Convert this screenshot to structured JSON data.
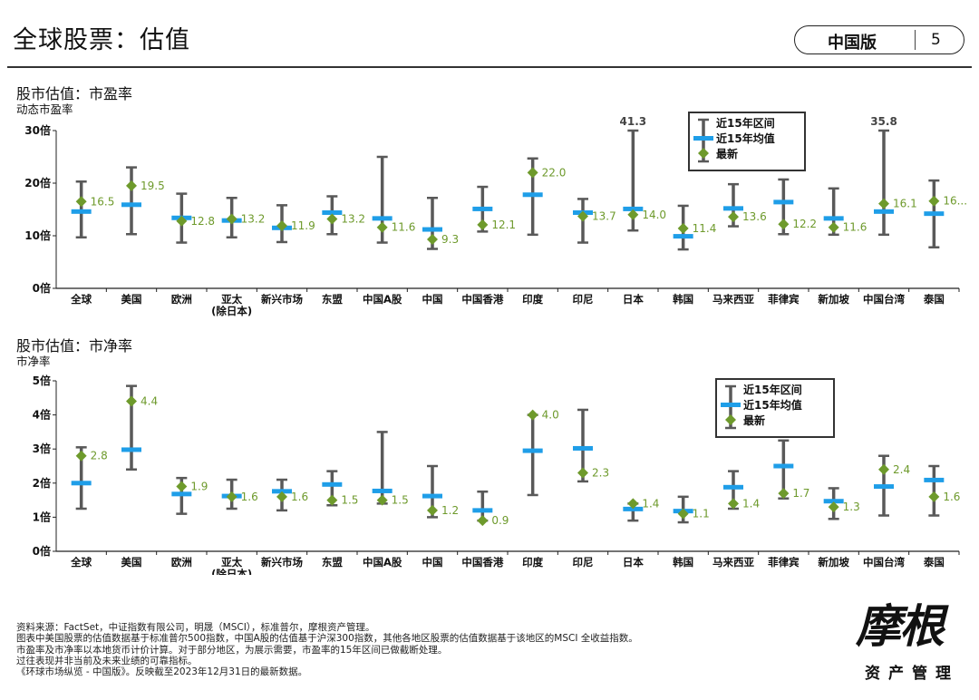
{
  "header": {
    "title": "全球股票：估值",
    "badge": "中国版",
    "page_number": "5"
  },
  "colors": {
    "range": "#595959",
    "average": "#1f9ee8",
    "latest": "#6e9a2c",
    "label": "#6e9a2c"
  },
  "chart_data": [
    {
      "type": "range-dot",
      "title": "股市估值：市盈率",
      "subtitle": "动态市盈率",
      "ylim": [
        0,
        30
      ],
      "yticks": [
        0,
        10,
        20,
        30
      ],
      "ytick_labels": [
        "0倍",
        "10倍",
        "20倍",
        "30倍"
      ],
      "categories": [
        "全球",
        "美国",
        "欧洲",
        "亚太\n(除日本)",
        "新兴市场",
        "东盟",
        "中国A股",
        "中国",
        "中国香港",
        "印度",
        "印尼",
        "日本",
        "韩国",
        "马来西亚",
        "菲律宾",
        "新加坡",
        "中国台湾",
        "泰国"
      ],
      "series": [
        {
          "name": "近15年区间",
          "low": [
            9.7,
            10.3,
            8.7,
            9.7,
            8.8,
            10.3,
            8.7,
            7.5,
            10.8,
            10.2,
            8.7,
            11.0,
            7.4,
            11.8,
            10.3,
            10.2,
            10.2,
            7.8
          ],
          "high": [
            20.3,
            23.0,
            18.0,
            17.2,
            15.8,
            17.5,
            25.0,
            17.2,
            19.3,
            24.7,
            17.0,
            30.0,
            15.7,
            19.8,
            20.7,
            19.0,
            30.0,
            20.5
          ]
        },
        {
          "name": "近15年均值",
          "values": [
            14.6,
            15.9,
            13.4,
            12.9,
            11.5,
            14.4,
            13.3,
            11.2,
            15.1,
            17.8,
            14.4,
            15.1,
            9.9,
            15.2,
            16.4,
            13.3,
            14.6,
            14.2
          ]
        },
        {
          "name": "最新",
          "values": [
            16.5,
            19.5,
            12.8,
            13.2,
            11.9,
            13.2,
            11.6,
            9.3,
            12.1,
            22.0,
            13.7,
            14.0,
            11.4,
            13.6,
            12.2,
            11.6,
            16.1,
            16.6
          ]
        }
      ],
      "value_labels": [
        "16.5",
        "19.5",
        "12.8",
        "13.2",
        "11.9",
        "13.2",
        "11.6",
        "9.3",
        "12.1",
        "22.0",
        "13.7",
        "14.0",
        "11.4",
        "13.6",
        "12.2",
        "11.6",
        "16.1",
        "16..."
      ],
      "cap_labels": [
        {
          "category": "日本",
          "text": "41.3"
        },
        {
          "category": "中国台湾",
          "text": "35.8"
        }
      ],
      "legend": {
        "position": "top-right",
        "entries": [
          "近15年区间",
          "近15年均值",
          "最新"
        ]
      }
    },
    {
      "type": "range-dot",
      "title": "股市估值：市净率",
      "subtitle": "市净率",
      "ylim": [
        0,
        5
      ],
      "yticks": [
        0,
        1,
        2,
        3,
        4,
        5
      ],
      "ytick_labels": [
        "0倍",
        "1倍",
        "2倍",
        "3倍",
        "4倍",
        "5倍"
      ],
      "categories": [
        "全球",
        "美国",
        "欧洲",
        "亚太\n(除日本)",
        "新兴市场",
        "东盟",
        "中国A股",
        "中国",
        "中国香港",
        "印度",
        "印尼",
        "日本",
        "韩国",
        "马来西亚",
        "菲律宾",
        "新加坡",
        "中国台湾",
        "泰国"
      ],
      "series": [
        {
          "name": "近15年区间",
          "low": [
            1.25,
            2.4,
            1.1,
            1.25,
            1.2,
            1.35,
            1.4,
            1.0,
            0.9,
            1.65,
            2.05,
            0.9,
            0.85,
            1.25,
            1.55,
            0.95,
            1.05,
            1.05
          ],
          "high": [
            3.05,
            4.85,
            2.15,
            2.1,
            2.1,
            2.35,
            3.5,
            2.5,
            1.75,
            4.0,
            4.15,
            1.4,
            1.6,
            2.35,
            3.25,
            1.85,
            2.8,
            2.5
          ]
        },
        {
          "name": "近15年均值",
          "values": [
            2.0,
            2.98,
            1.68,
            1.62,
            1.76,
            1.96,
            1.77,
            1.62,
            1.2,
            2.95,
            3.02,
            1.24,
            1.18,
            1.88,
            2.5,
            1.47,
            1.9,
            2.09
          ]
        },
        {
          "name": "最新",
          "values": [
            2.8,
            4.4,
            1.9,
            1.6,
            1.6,
            1.5,
            1.5,
            1.2,
            0.9,
            4.0,
            2.3,
            1.4,
            1.1,
            1.4,
            1.7,
            1.3,
            2.4,
            1.6
          ]
        }
      ],
      "value_labels": [
        "2.8",
        "4.4",
        "1.9",
        "1.6",
        "1.6",
        "1.5",
        "1.5",
        "1.2",
        "0.9",
        "4.0",
        "2.3",
        "1.4",
        "1.1",
        "1.4",
        "1.7",
        "1.3",
        "2.4",
        "1.6"
      ],
      "cap_labels": [],
      "legend": {
        "position": "top-right",
        "entries": [
          "近15年区间",
          "近15年均值",
          "最新"
        ]
      }
    }
  ],
  "footnotes": [
    "资料来源：FactSet，中证指数有限公司，明晟（MSCI），标准普尔，摩根资产管理。",
    "图表中美国股票的估值数据基于标准普尔500指数，中国A股的估值基于沪深300指数，其他各地区股票的估值数据基于该地区的MSCI 全收益指数。",
    "市盈率及市净率以本地货币计价计算。对于部分地区，为展示需要，市盈率的15年区间已做截断处理。",
    "过往表现并非当前及未来业绩的可靠指标。",
    "《环球市场纵览 - 中国版》。反映截至2023年12月31日的最新数据。"
  ],
  "logo": {
    "main": "摩根",
    "sub": "资产管理"
  }
}
